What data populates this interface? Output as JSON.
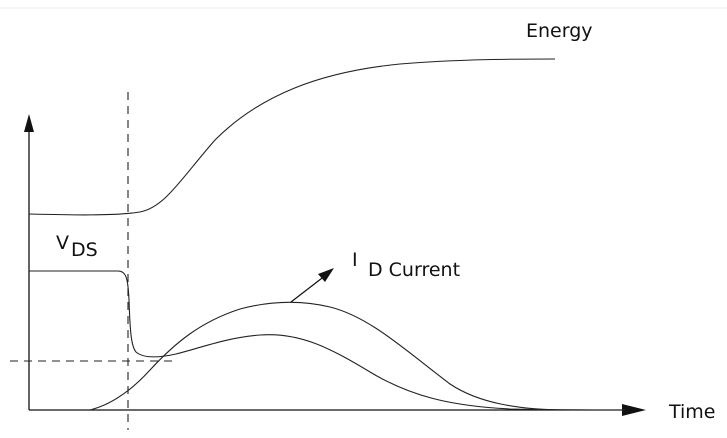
{
  "labels": {
    "energy": "Energy",
    "vds_main": "V",
    "vds_sub": "DS",
    "id_main": "I",
    "id_sub": "D Current",
    "time": "Time"
  }
}
